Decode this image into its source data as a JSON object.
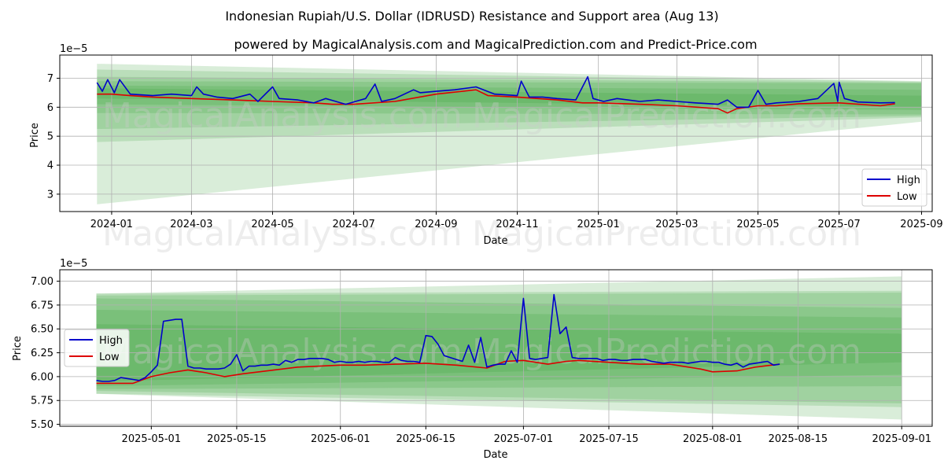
{
  "title": "Indonesian Rupiah/U.S. Dollar (IDRUSD) Resistance and Support area (Aug 13)",
  "subtitle": "powered by MagicalAnalysis.com and MagicalPrediction.com and Predict-Price.com",
  "watermarks": [
    "MagicalAnalysis.com",
    "MagicalPrediction.com"
  ],
  "colors": {
    "high": "#0000cc",
    "low": "#dd0000",
    "band": "#2e9a2e",
    "grid": "#b0b0b0"
  },
  "chart_data": [
    {
      "type": "line",
      "xlabel": "Date",
      "ylabel": "Price",
      "scale_label": "1e−5",
      "legend_position": "lower-right",
      "legend": [
        "High",
        "Low"
      ],
      "grid": true,
      "x_start": "2023-12-21",
      "x_end": "2025-09-01",
      "xlim": [
        "2023-11-23",
        "2025-09-09"
      ],
      "ylim": [
        2.4,
        7.8
      ],
      "x_ticks": [
        {
          "date": "2024-01-01",
          "label": "2024-01"
        },
        {
          "date": "2024-03-01",
          "label": "2024-03"
        },
        {
          "date": "2024-05-01",
          "label": "2024-05"
        },
        {
          "date": "2024-07-01",
          "label": "2024-07"
        },
        {
          "date": "2024-09-01",
          "label": "2024-09"
        },
        {
          "date": "2024-11-01",
          "label": "2024-11"
        },
        {
          "date": "2025-01-01",
          "label": "2025-01"
        },
        {
          "date": "2025-03-01",
          "label": "2025-03"
        },
        {
          "date": "2025-05-01",
          "label": "2025-05"
        },
        {
          "date": "2025-07-01",
          "label": "2025-07"
        },
        {
          "date": "2025-09-01",
          "label": "2025-09"
        }
      ],
      "y_ticks": [
        {
          "value": 3,
          "label": "3"
        },
        {
          "value": 4,
          "label": "4"
        },
        {
          "value": 5,
          "label": "5"
        },
        {
          "value": 6,
          "label": "6"
        },
        {
          "value": 7,
          "label": "7"
        }
      ],
      "bands": [
        {
          "start": [
            2.65,
            7.5
          ],
          "end": [
            5.5,
            6.9
          ]
        },
        {
          "start": [
            4.8,
            7.3
          ],
          "end": [
            5.65,
            6.88
          ]
        },
        {
          "start": [
            5.25,
            7.05
          ],
          "end": [
            5.7,
            6.85
          ]
        },
        {
          "start": [
            5.8,
            6.9
          ],
          "end": [
            5.75,
            6.82
          ]
        },
        {
          "start": [
            6.1,
            6.75
          ],
          "end": [
            5.9,
            6.6
          ]
        },
        {
          "start": [
            6.3,
            6.65
          ],
          "end": [
            6.0,
            6.4
          ]
        }
      ],
      "series": [
        {
          "name": "High",
          "x": [
            "2023-12-21",
            "2023-12-25",
            "2023-12-29",
            "2024-01-03",
            "2024-01-07",
            "2024-01-15",
            "2024-02-01",
            "2024-02-15",
            "2024-03-01",
            "2024-03-05",
            "2024-03-10",
            "2024-03-20",
            "2024-04-01",
            "2024-04-14",
            "2024-04-20",
            "2024-05-01",
            "2024-05-06",
            "2024-05-20",
            "2024-06-01",
            "2024-06-10",
            "2024-06-25",
            "2024-07-10",
            "2024-07-17",
            "2024-07-22",
            "2024-08-01",
            "2024-08-15",
            "2024-08-20",
            "2024-09-01",
            "2024-09-15",
            "2024-10-01",
            "2024-10-15",
            "2024-11-01",
            "2024-11-04",
            "2024-11-10",
            "2024-11-20",
            "2024-12-01",
            "2024-12-15",
            "2024-12-24",
            "2024-12-28",
            "2025-01-05",
            "2025-01-15",
            "2025-02-01",
            "2025-02-15",
            "2025-03-01",
            "2025-03-15",
            "2025-04-01",
            "2025-04-08",
            "2025-04-15",
            "2025-04-24",
            "2025-05-01",
            "2025-05-07",
            "2025-05-15",
            "2025-06-01",
            "2025-06-15",
            "2025-06-27",
            "2025-06-30",
            "2025-07-01",
            "2025-07-05",
            "2025-07-15",
            "2025-08-01",
            "2025-08-12"
          ],
          "values": [
            6.85,
            6.55,
            6.95,
            6.5,
            6.95,
            6.45,
            6.4,
            6.45,
            6.4,
            6.7,
            6.45,
            6.35,
            6.3,
            6.45,
            6.2,
            6.7,
            6.3,
            6.25,
            6.15,
            6.3,
            6.1,
            6.3,
            6.8,
            6.2,
            6.3,
            6.6,
            6.5,
            6.55,
            6.6,
            6.7,
            6.45,
            6.4,
            6.9,
            6.35,
            6.35,
            6.3,
            6.25,
            7.05,
            6.3,
            6.2,
            6.3,
            6.2,
            6.25,
            6.2,
            6.15,
            6.1,
            6.25,
            6.0,
            6.0,
            6.58,
            6.1,
            6.15,
            6.2,
            6.3,
            6.82,
            6.2,
            6.86,
            6.3,
            6.18,
            6.15,
            6.16
          ]
        },
        {
          "name": "Low",
          "x": [
            "2023-12-21",
            "2024-01-01",
            "2024-01-15",
            "2024-02-01",
            "2024-03-01",
            "2024-04-01",
            "2024-05-01",
            "2024-06-01",
            "2024-06-15",
            "2024-07-01",
            "2024-08-01",
            "2024-09-01",
            "2024-10-01",
            "2024-10-10",
            "2024-11-01",
            "2024-12-01",
            "2024-12-20",
            "2025-01-01",
            "2025-02-01",
            "2025-03-01",
            "2025-04-01",
            "2025-04-08",
            "2025-04-15",
            "2025-05-01",
            "2025-05-15",
            "2025-06-01",
            "2025-07-01",
            "2025-08-01",
            "2025-08-12"
          ],
          "values": [
            6.45,
            6.45,
            6.4,
            6.35,
            6.3,
            6.25,
            6.2,
            6.15,
            6.1,
            6.1,
            6.2,
            6.45,
            6.6,
            6.4,
            6.35,
            6.25,
            6.15,
            6.15,
            6.1,
            6.05,
            5.95,
            5.8,
            5.95,
            6.05,
            6.05,
            6.12,
            6.15,
            6.05,
            6.12
          ]
        }
      ]
    },
    {
      "type": "line",
      "xlabel": "Date",
      "ylabel": "Price",
      "scale_label": "1e−5",
      "legend_position": "center-left",
      "legend": [
        "High",
        "Low"
      ],
      "grid": true,
      "x_start": "2025-04-22",
      "x_end": "2025-09-01",
      "xlim": [
        "2025-04-16",
        "2025-09-06"
      ],
      "ylim": [
        5.48,
        7.12
      ],
      "x_ticks": [
        {
          "date": "2025-05-01",
          "label": "2025-05-01"
        },
        {
          "date": "2025-05-15",
          "label": "2025-05-15"
        },
        {
          "date": "2025-06-01",
          "label": "2025-06-01"
        },
        {
          "date": "2025-06-15",
          "label": "2025-06-15"
        },
        {
          "date": "2025-07-01",
          "label": "2025-07-01"
        },
        {
          "date": "2025-07-15",
          "label": "2025-07-15"
        },
        {
          "date": "2025-08-01",
          "label": "2025-08-01"
        },
        {
          "date": "2025-08-15",
          "label": "2025-08-15"
        },
        {
          "date": "2025-09-01",
          "label": "2025-09-01"
        }
      ],
      "y_ticks": [
        {
          "value": 5.5,
          "label": "5.50"
        },
        {
          "value": 5.75,
          "label": "5.75"
        },
        {
          "value": 6.0,
          "label": "6.00"
        },
        {
          "value": 6.25,
          "label": "6.25"
        },
        {
          "value": 6.5,
          "label": "6.50"
        },
        {
          "value": 6.75,
          "label": "6.75"
        },
        {
          "value": 7.0,
          "label": "7.00"
        }
      ],
      "bands": [
        {
          "start": [
            5.82,
            6.87
          ],
          "end": [
            5.55,
            7.05
          ]
        },
        {
          "start": [
            5.82,
            6.87
          ],
          "end": [
            5.68,
            6.9
          ]
        },
        {
          "start": [
            5.85,
            6.85
          ],
          "end": [
            5.72,
            6.88
          ]
        },
        {
          "start": [
            5.87,
            6.82
          ],
          "end": [
            5.9,
            6.72
          ]
        },
        {
          "start": [
            5.9,
            6.7
          ],
          "end": [
            6.02,
            6.62
          ]
        },
        {
          "start": [
            5.95,
            6.55
          ],
          "end": [
            6.15,
            6.45
          ]
        }
      ],
      "series": [
        {
          "name": "High",
          "x": [
            "2025-04-22",
            "2025-04-23",
            "2025-04-24",
            "2025-04-25",
            "2025-04-26",
            "2025-04-27",
            "2025-04-28",
            "2025-04-29",
            "2025-04-30",
            "2025-05-01",
            "2025-05-02",
            "2025-05-03",
            "2025-05-04",
            "2025-05-05",
            "2025-05-06",
            "2025-05-07",
            "2025-05-08",
            "2025-05-09",
            "2025-05-10",
            "2025-05-11",
            "2025-05-12",
            "2025-05-13",
            "2025-05-14",
            "2025-05-15",
            "2025-05-16",
            "2025-05-17",
            "2025-05-18",
            "2025-05-19",
            "2025-05-20",
            "2025-05-21",
            "2025-05-22",
            "2025-05-23",
            "2025-05-24",
            "2025-05-25",
            "2025-05-26",
            "2025-05-27",
            "2025-05-28",
            "2025-05-29",
            "2025-05-30",
            "2025-05-31",
            "2025-06-01",
            "2025-06-02",
            "2025-06-03",
            "2025-06-04",
            "2025-06-05",
            "2025-06-06",
            "2025-06-07",
            "2025-06-08",
            "2025-06-09",
            "2025-06-10",
            "2025-06-11",
            "2025-06-12",
            "2025-06-13",
            "2025-06-14",
            "2025-06-15",
            "2025-06-16",
            "2025-06-17",
            "2025-06-18",
            "2025-06-19",
            "2025-06-20",
            "2025-06-21",
            "2025-06-22",
            "2025-06-23",
            "2025-06-24",
            "2025-06-25",
            "2025-06-26",
            "2025-06-27",
            "2025-06-28",
            "2025-06-29",
            "2025-06-30",
            "2025-07-01",
            "2025-07-02",
            "2025-07-03",
            "2025-07-04",
            "2025-07-05",
            "2025-07-06",
            "2025-07-07",
            "2025-07-08",
            "2025-07-09",
            "2025-07-10",
            "2025-07-11",
            "2025-07-12",
            "2025-07-13",
            "2025-07-14",
            "2025-07-15",
            "2025-07-16",
            "2025-07-17",
            "2025-07-18",
            "2025-07-19",
            "2025-07-20",
            "2025-07-21",
            "2025-07-22",
            "2025-07-23",
            "2025-07-24",
            "2025-07-25",
            "2025-07-26",
            "2025-07-27",
            "2025-07-28",
            "2025-07-29",
            "2025-07-30",
            "2025-07-31",
            "2025-08-01",
            "2025-08-02",
            "2025-08-03",
            "2025-08-04",
            "2025-08-05",
            "2025-08-06",
            "2025-08-07",
            "2025-08-08",
            "2025-08-09",
            "2025-08-10",
            "2025-08-11",
            "2025-08-12"
          ],
          "values": [
            5.96,
            5.95,
            5.95,
            5.96,
            5.99,
            5.98,
            5.97,
            5.96,
            5.99,
            6.05,
            6.12,
            6.58,
            6.59,
            6.6,
            6.6,
            6.11,
            6.09,
            6.09,
            6.08,
            6.08,
            6.08,
            6.09,
            6.13,
            6.23,
            6.06,
            6.11,
            6.11,
            6.12,
            6.12,
            6.13,
            6.12,
            6.17,
            6.15,
            6.18,
            6.18,
            6.19,
            6.19,
            6.19,
            6.18,
            6.15,
            6.16,
            6.15,
            6.15,
            6.16,
            6.15,
            6.16,
            6.16,
            6.15,
            6.15,
            6.2,
            6.17,
            6.16,
            6.16,
            6.15,
            6.43,
            6.42,
            6.34,
            6.22,
            6.2,
            6.18,
            6.16,
            6.33,
            6.15,
            6.41,
            6.1,
            6.12,
            6.13,
            6.13,
            6.27,
            6.15,
            6.82,
            6.19,
            6.18,
            6.19,
            6.2,
            6.86,
            6.45,
            6.52,
            6.2,
            6.19,
            6.19,
            6.19,
            6.19,
            6.17,
            6.18,
            6.18,
            6.17,
            6.17,
            6.18,
            6.18,
            6.18,
            6.16,
            6.15,
            6.14,
            6.15,
            6.15,
            6.15,
            6.14,
            6.15,
            6.16,
            6.16,
            6.15,
            6.15,
            6.13,
            6.12,
            6.14,
            6.1,
            6.13,
            6.14,
            6.15,
            6.16,
            6.12,
            6.13
          ]
        },
        {
          "name": "Low",
          "x": [
            "2025-04-22",
            "2025-04-25",
            "2025-04-28",
            "2025-05-01",
            "2025-05-04",
            "2025-05-07",
            "2025-05-10",
            "2025-05-13",
            "2025-05-16",
            "2025-05-20",
            "2025-05-25",
            "2025-06-01",
            "2025-06-05",
            "2025-06-10",
            "2025-06-15",
            "2025-06-20",
            "2025-06-25",
            "2025-06-28",
            "2025-07-01",
            "2025-07-05",
            "2025-07-08",
            "2025-07-10",
            "2025-07-15",
            "2025-07-20",
            "2025-07-25",
            "2025-07-30",
            "2025-08-01",
            "2025-08-05",
            "2025-08-08",
            "2025-08-12"
          ],
          "values": [
            5.93,
            5.93,
            5.93,
            6.0,
            6.04,
            6.07,
            6.04,
            6.0,
            6.03,
            6.06,
            6.1,
            6.12,
            6.12,
            6.13,
            6.14,
            6.12,
            6.09,
            6.16,
            6.17,
            6.13,
            6.16,
            6.17,
            6.15,
            6.13,
            6.13,
            6.08,
            6.05,
            6.06,
            6.1,
            6.13
          ]
        }
      ]
    }
  ]
}
